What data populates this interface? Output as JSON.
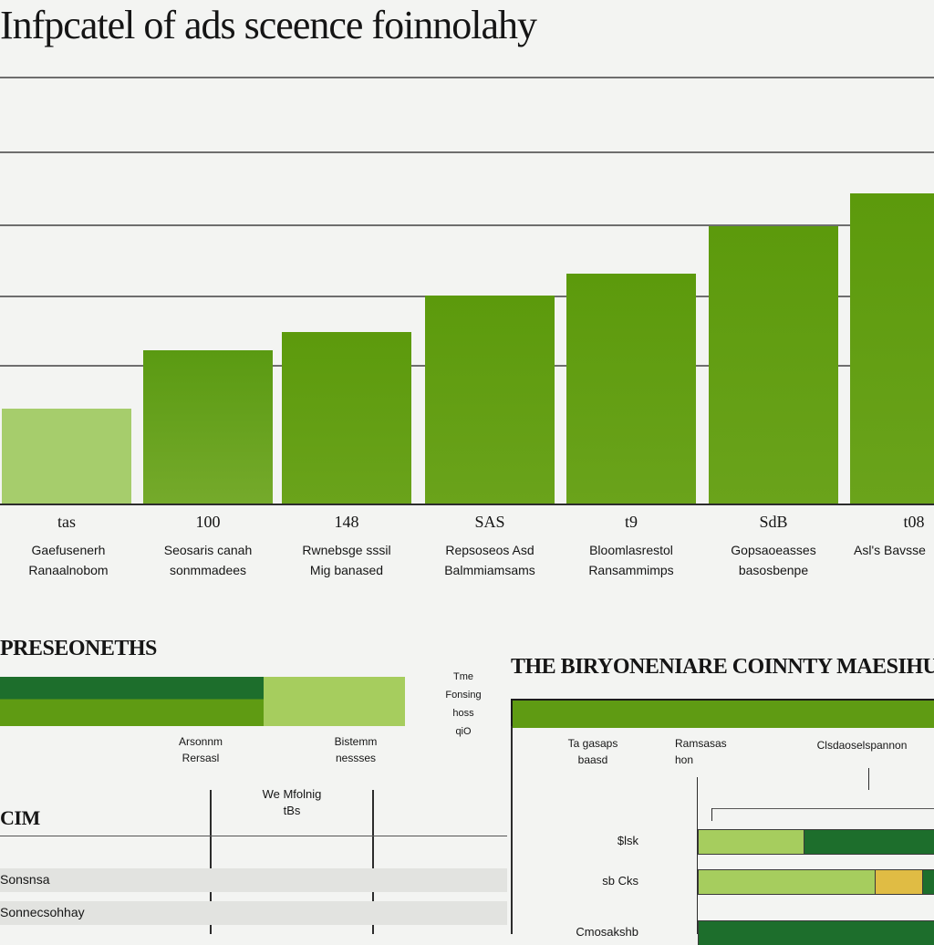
{
  "colors": {
    "bar_gradient_start": "#a6cd6c",
    "bar_gradient_end": "#5c9a0c",
    "dark_green": "#1d6e2c",
    "light_green": "#a6cd5e",
    "mid_green": "#5f9b13",
    "yellow": "#e0bc44",
    "gridline": "#6e6e6e"
  },
  "chart_data": [
    {
      "type": "bar",
      "title": "Infpcatel of ads sceence foinnolahy",
      "categories": [
        "Gaefusenerh\nRanaalnobom",
        "Seosaris canah\nsonmmadees",
        "Rwnebsge sssil\nMig banased",
        "Repsoseos Asd\nBalmmiamsams",
        "Bloomlasrestol\nRansammimps",
        "Gopsaoeasses\nbasosbenpe",
        "Asl's Bavsse"
      ],
      "value_labels": [
        "tas",
        "100",
        "148",
        "SAS",
        "t9",
        "SdB",
        "t08"
      ],
      "values": [
        1.3,
        2.1,
        2.35,
        2.85,
        3.15,
        3.8,
        4.25
      ],
      "ylim": [
        0,
        6
      ],
      "grid": true,
      "legend": "none"
    },
    {
      "type": "bar",
      "orientation": "horizontal",
      "stacked": true,
      "title": "PRESEONETHS",
      "series": [
        {
          "name": "Arsonnm\nRersasl",
          "values": [
            0.65
          ]
        },
        {
          "name": "Bistemm\nnessses",
          "values": [
            0.35
          ]
        }
      ]
    },
    {
      "type": "bar",
      "orientation": "horizontal",
      "stacked": true,
      "title": "THE BIRYONENIARE COINNTY MAESIHUNA",
      "categories": [
        "$lsk",
        "sb Cks",
        "Cmosakshb"
      ],
      "columns": [
        "Ta gasaps\nbaasd",
        "Ramsasas\nhon",
        "Clsdaoselspannon"
      ],
      "series": [
        {
          "name": "light",
          "values": [
            0.45,
            0.75,
            0
          ]
        },
        {
          "name": "yellow",
          "values": [
            0,
            0.2,
            0
          ]
        },
        {
          "name": "dark",
          "values": [
            0.55,
            0.05,
            1.0
          ]
        }
      ]
    }
  ],
  "left_panel": {
    "section_label": "CIM",
    "note": "We Mfolnig\ntBs",
    "rows": [
      "Sonsnsa",
      "Sonnecsohhay"
    ]
  },
  "middle_note": "Tme\nFonsing\nhoss\nqiO"
}
